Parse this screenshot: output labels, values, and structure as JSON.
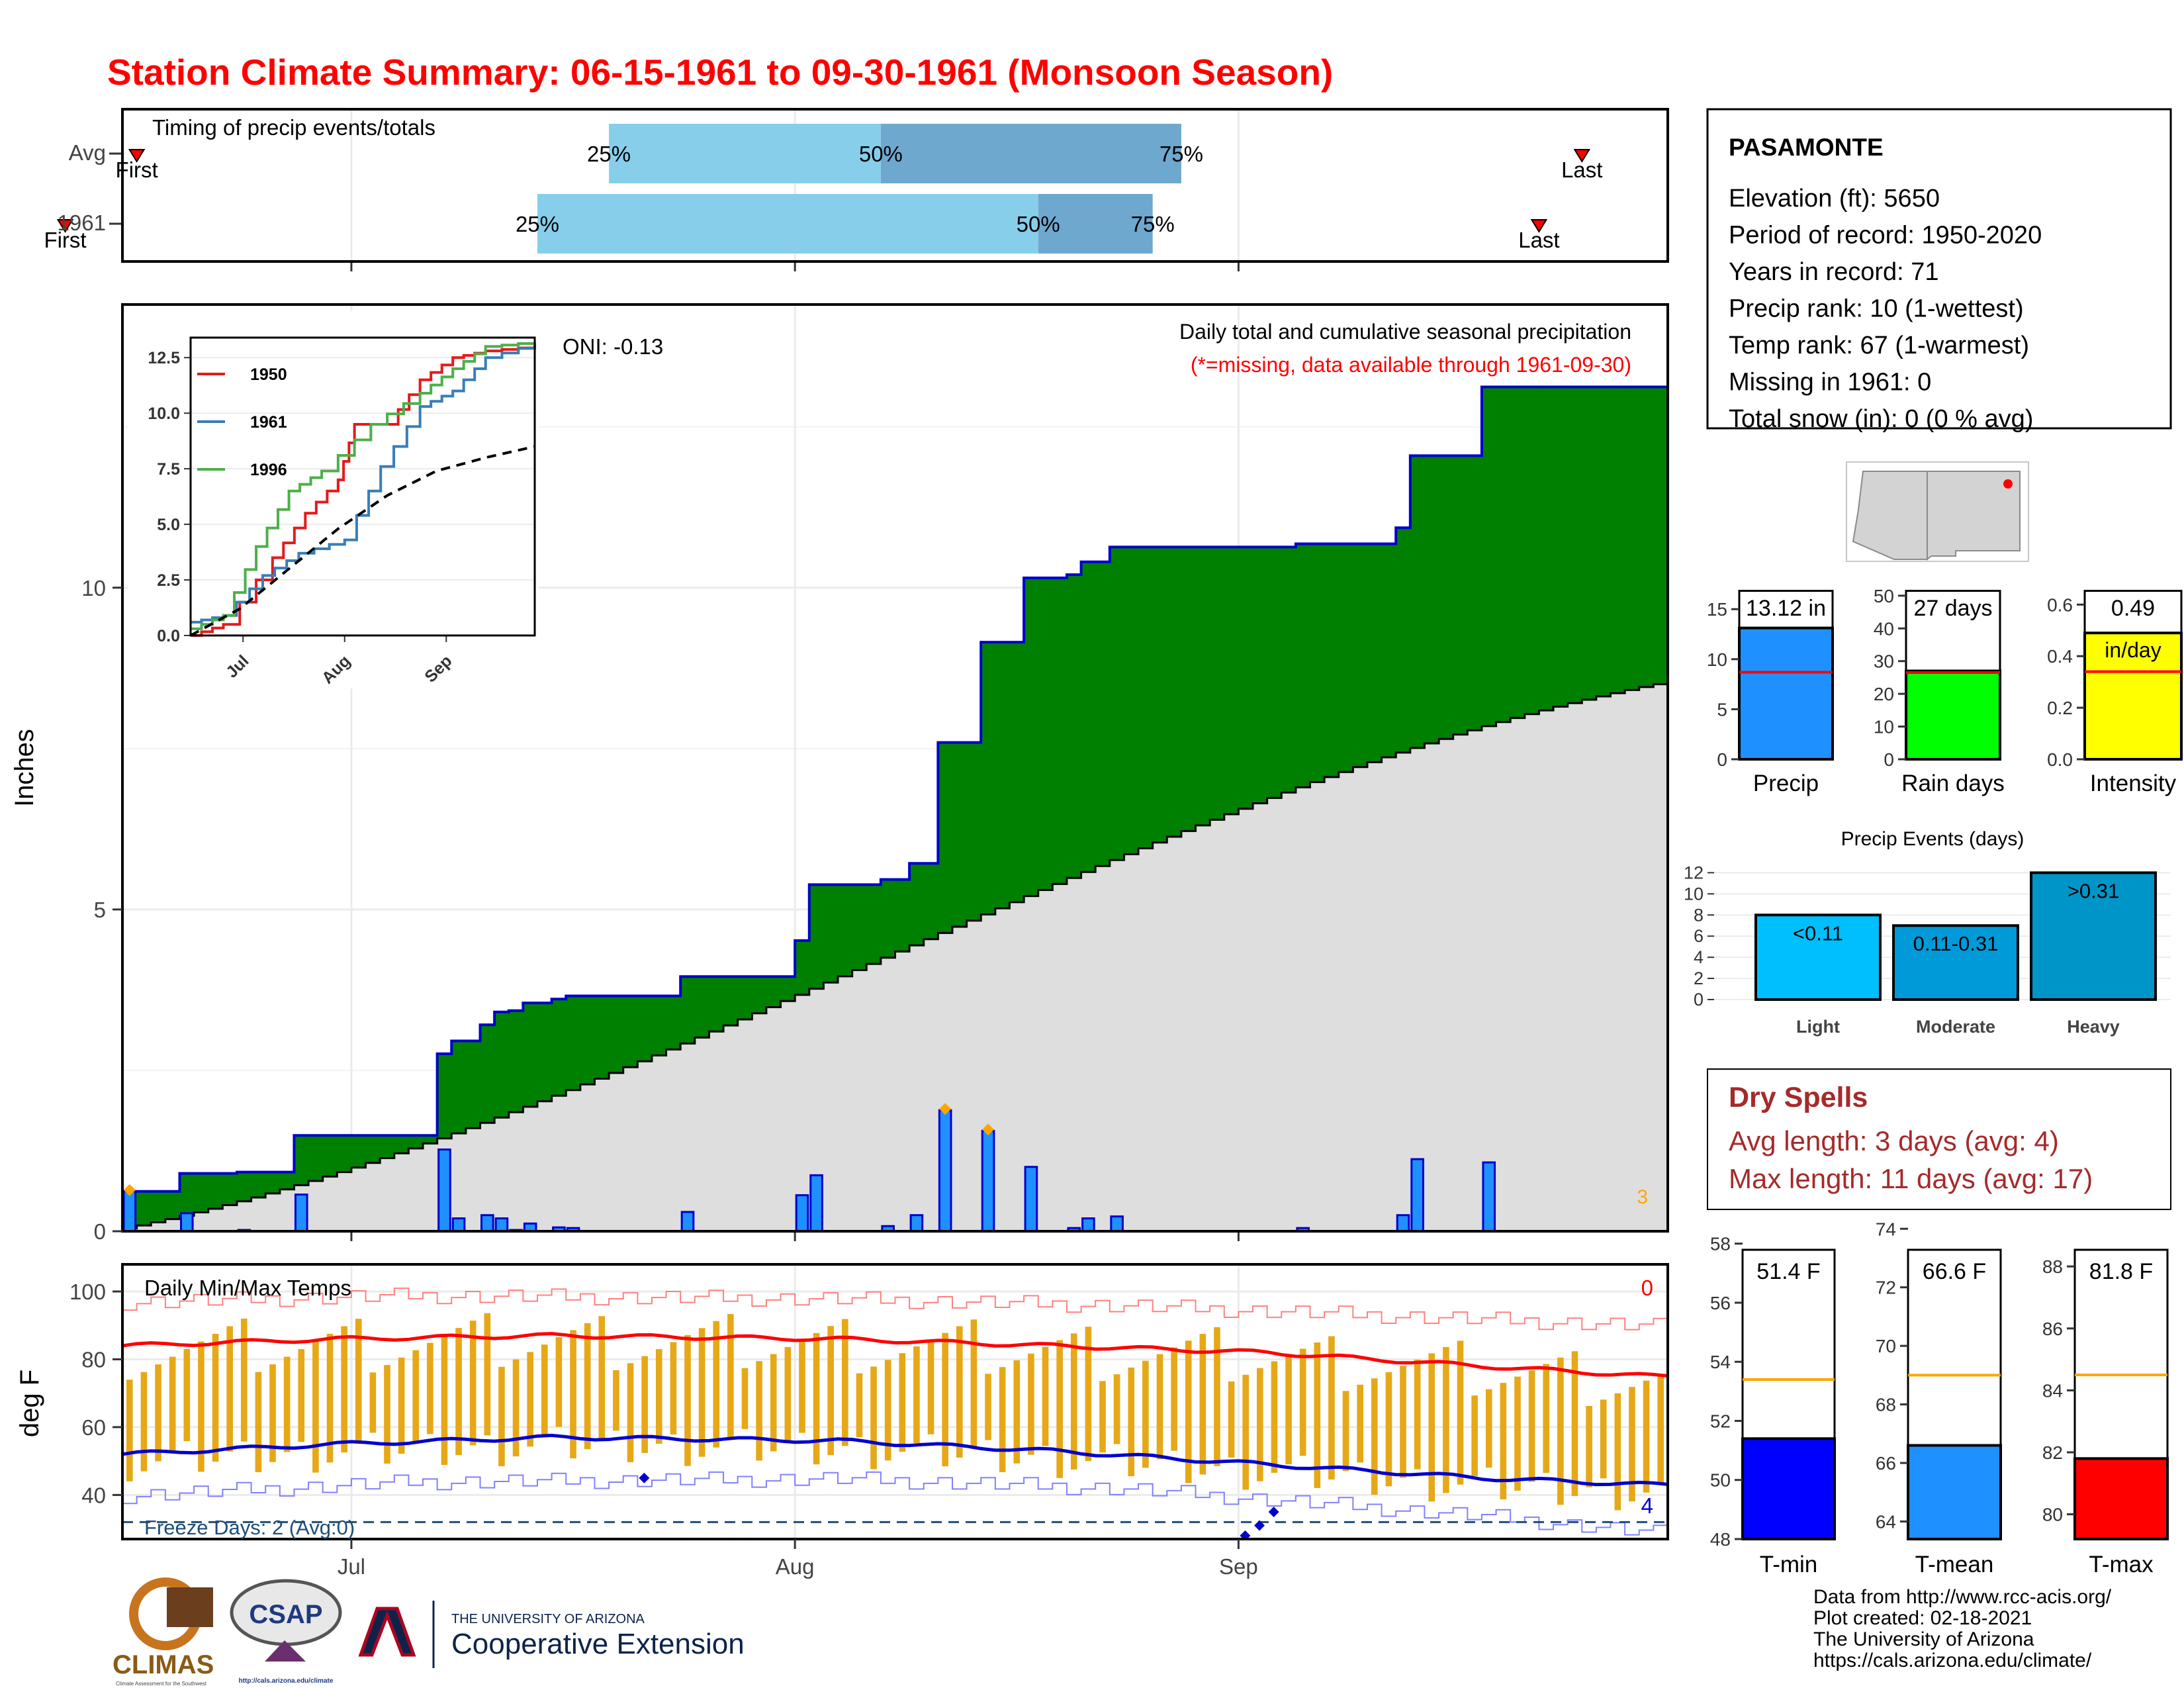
{
  "title": "Station Climate Summary: 06-15-1961 to 09-30-1961 (Monsoon Season)",
  "colors": {
    "title": "#ff0000",
    "cum_fill": "#008000",
    "cum_line": "#0000cd",
    "avg_fill": "#dedede",
    "bar": "#1e90ff",
    "q1": "#87ceeb",
    "q2": "#6fa8cf",
    "tmax": "#ff0000",
    "tmin": "#0000cd",
    "range_bar": "#e6a817",
    "dry_spell": "#a52a2a",
    "freeze": "#1f4e79",
    "marker": "#ffa500"
  },
  "timing": {
    "title": "Timing of precip events/totals",
    "rows": [
      {
        "label": "Avg",
        "first": "First",
        "last": "Last",
        "first_day": 1,
        "q25_day": 34,
        "q50_day": 53,
        "q75_day": 74,
        "last_day": 102,
        "p25": "25%",
        "p50": "50%",
        "p75": "75%"
      },
      {
        "label": "1961",
        "first": "First",
        "last": "Last",
        "first_day": -4,
        "q25_day": 29,
        "q50_day": 64,
        "q75_day": 72,
        "last_day": 99,
        "p25": "25%",
        "p50": "50%",
        "p75": "75%"
      }
    ]
  },
  "precip_panel": {
    "title": "Daily total and cumulative seasonal precipitation",
    "subtitle": "(*=missing, data available through 1961-09-30)",
    "oni": "ONI: -0.13",
    "ylabel": "Inches",
    "yticks": [
      "0",
      "5",
      "10"
    ],
    "corner_count": "3"
  },
  "temp_panel": {
    "title": "Daily Min/Max Temps",
    "ylabel": "deg F",
    "yticks": [
      "40",
      "60",
      "80",
      "100"
    ],
    "freeze_label": "Freeze Days: 2 (Avg:0)",
    "hot_count": "0",
    "cold_count": "4",
    "xticks": [
      "Jul",
      "Aug",
      "Sep"
    ]
  },
  "inset": {
    "yticks": [
      "0.0",
      "2.5",
      "5.0",
      "7.5",
      "10.0",
      "12.5"
    ],
    "xticks": [
      "Jul",
      "Aug",
      "Sep"
    ],
    "legend": [
      {
        "name": "1950",
        "color": "#e41a1c"
      },
      {
        "name": "1961",
        "color": "#377eb8"
      },
      {
        "name": "1996",
        "color": "#4daf4a"
      }
    ]
  },
  "station": {
    "name": "PASAMONTE",
    "lines": [
      "Elevation (ft): 5650",
      "Period of record: 1950-2020",
      "Years in record: 71",
      "Precip rank: 10 (1-wettest)",
      "Temp rank: 67 (1-warmest)",
      "Missing in 1961: 0",
      "Total snow (in): 0 (0 % avg)"
    ]
  },
  "summary_bars": [
    {
      "label": "Precip",
      "value_label": "13.12 in",
      "value": 13.12,
      "avg": 8.7,
      "ymax": 17,
      "ticks": [
        "0",
        "5",
        "10",
        "15"
      ],
      "tickvals": [
        0,
        5,
        10,
        15
      ],
      "color": "#1e90ff"
    },
    {
      "label": "Rain days",
      "value_label": "27 days",
      "value": 27,
      "avg": 26.5,
      "ymax": 52,
      "ticks": [
        "0",
        "10",
        "20",
        "30",
        "40",
        "50"
      ],
      "tickvals": [
        0,
        10,
        20,
        30,
        40,
        50
      ],
      "color": "#00ff00"
    },
    {
      "label": "Intensity",
      "value_label": "0.49",
      "unit_label": "in/day",
      "value": 0.49,
      "avg": 0.34,
      "ymax": 0.66,
      "ticks": [
        "0.0",
        "0.2",
        "0.4",
        "0.6"
      ],
      "tickvals": [
        0,
        0.2,
        0.4,
        0.6
      ],
      "color": "#ffff00"
    }
  ],
  "precip_events": {
    "title": "Precip Events (days)",
    "yticks": [
      "0",
      "2",
      "4",
      "6",
      "8",
      "10",
      "12"
    ],
    "categories": [
      "Light",
      "Moderate",
      "Heavy"
    ],
    "value_labels": [
      "<0.11",
      "0.11-0.31",
      ">0.31"
    ],
    "values": [
      8,
      7,
      12
    ],
    "colors": [
      "#00bfff",
      "#009ad9",
      "#0095c8"
    ]
  },
  "dry_spells": {
    "title": "Dry Spells",
    "avg_length": "Avg length: 3 days (avg: 4)",
    "max_length": "Max length: 11 days (avg: 17)"
  },
  "temp_summary": [
    {
      "label": "T-min",
      "value_label": "51.4 F",
      "value": 51.4,
      "avg": 53.4,
      "ymin": 48,
      "ymax": 58.8,
      "ticks": [
        "48",
        "50",
        "52",
        "54",
        "56",
        "58"
      ],
      "tickvals": [
        48,
        50,
        52,
        54,
        56,
        58
      ],
      "color": "#0000ff"
    },
    {
      "label": "T-mean",
      "value_label": "66.6 F",
      "value": 66.6,
      "avg": 69,
      "ymin": 63.4,
      "ymax": 74.3,
      "ticks": [
        "64",
        "66",
        "68",
        "70",
        "72",
        "74"
      ],
      "tickvals": [
        64,
        66,
        68,
        70,
        72,
        74
      ],
      "color": "#1e90ff"
    },
    {
      "label": "T-max",
      "value_label": "81.8 F",
      "value": 81.8,
      "avg": 84.5,
      "ymin": 79.2,
      "ymax": 89.5,
      "ticks": [
        "80",
        "82",
        "84",
        "86",
        "88"
      ],
      "tickvals": [
        80,
        82,
        84,
        86,
        88
      ],
      "color": "#ff0000"
    }
  ],
  "footer": {
    "lines": [
      "Data from http://www.rcc-acis.org/",
      "Plot created: 02-18-2021",
      "The University of Arizona",
      "https://cals.arizona.edu/climate/"
    ],
    "logos": {
      "climas": "CLIMAS",
      "climas_sub": "Climate Assessment for the Southwest",
      "csap": "CSAP",
      "csap_url": "http://cals.arizona.edu/climate",
      "ua_small": "THE UNIVERSITY OF ARIZONA",
      "ua_big": "Cooperative Extension"
    }
  },
  "chart_data": [
    {
      "type": "bar",
      "title": "Daily total and cumulative seasonal precipitation",
      "ylabel": "Inches",
      "ylim": [
        0,
        14.4
      ],
      "x_start": "1961-06-15",
      "x_end": "1961-09-30",
      "daily_precip": [
        {
          "date": "1961-06-15",
          "value": 0.62
        },
        {
          "date": "1961-06-19",
          "value": 0.28
        },
        {
          "date": "1961-06-23",
          "value": 0.02
        },
        {
          "date": "1961-06-27",
          "value": 0.57
        },
        {
          "date": "1961-07-07",
          "value": 1.27
        },
        {
          "date": "1961-07-08",
          "value": 0.2
        },
        {
          "date": "1961-07-10",
          "value": 0.25
        },
        {
          "date": "1961-07-11",
          "value": 0.2
        },
        {
          "date": "1961-07-12",
          "value": 0.02
        },
        {
          "date": "1961-07-13",
          "value": 0.12
        },
        {
          "date": "1961-07-15",
          "value": 0.06
        },
        {
          "date": "1961-07-16",
          "value": 0.05
        },
        {
          "date": "1961-07-24",
          "value": 0.3
        },
        {
          "date": "1961-08-01",
          "value": 0.56
        },
        {
          "date": "1961-08-02",
          "value": 0.87
        },
        {
          "date": "1961-08-07",
          "value": 0.08
        },
        {
          "date": "1961-08-09",
          "value": 0.25
        },
        {
          "date": "1961-08-11",
          "value": 1.88
        },
        {
          "date": "1961-08-14",
          "value": 1.56
        },
        {
          "date": "1961-08-17",
          "value": 1.0
        },
        {
          "date": "1961-08-20",
          "value": 0.05
        },
        {
          "date": "1961-08-21",
          "value": 0.2
        },
        {
          "date": "1961-08-23",
          "value": 0.23
        },
        {
          "date": "1961-09-05",
          "value": 0.05
        },
        {
          "date": "1961-09-12",
          "value": 0.25
        },
        {
          "date": "1961-09-13",
          "value": 1.12
        },
        {
          "date": "1961-09-18",
          "value": 1.07
        }
      ],
      "cumulative_1961_end": 13.12,
      "cumulative_avg_end": 8.5
    },
    {
      "type": "line",
      "title": "Daily Min/Max Temps",
      "ylabel": "deg F",
      "ylim": [
        27,
        108
      ],
      "series": [
        {
          "name": "tmax_avg",
          "points": [
            [
              0,
              84
            ],
            [
              15,
              86
            ],
            [
              30,
              87
            ],
            [
              50,
              86
            ],
            [
              65,
              84
            ],
            [
              80,
              82
            ],
            [
              95,
              78
            ],
            [
              107,
              75
            ]
          ]
        },
        {
          "name": "tmin_avg",
          "points": [
            [
              0,
              52
            ],
            [
              15,
              55
            ],
            [
              30,
              57
            ],
            [
              50,
              56
            ],
            [
              65,
              53
            ],
            [
              80,
              49
            ],
            [
              95,
              45
            ],
            [
              107,
              43
            ]
          ]
        },
        {
          "name": "tmax_record",
          "points": [
            [
              0,
              97
            ],
            [
              20,
              99
            ],
            [
              50,
              98
            ],
            [
              70,
              96
            ],
            [
              95,
              92
            ],
            [
              107,
              90
            ]
          ]
        },
        {
          "name": "tmin_record",
          "points": [
            [
              0,
              40
            ],
            [
              20,
              44
            ],
            [
              50,
              45
            ],
            [
              70,
              42
            ],
            [
              95,
              34
            ],
            [
              107,
              29
            ]
          ]
        }
      ],
      "freeze_line": 32
    },
    {
      "type": "line",
      "title": "",
      "series": [
        {
          "name": "1950",
          "points": [
            [
              0,
              0
            ],
            [
              10,
              0.5
            ],
            [
              25,
              3.5
            ],
            [
              35,
              5.5
            ],
            [
              45,
              7.0
            ],
            [
              50,
              9.5
            ],
            [
              60,
              9.5
            ],
            [
              70,
              11.5
            ],
            [
              80,
              12.5
            ],
            [
              90,
              12.8
            ],
            [
              105,
              13.0
            ]
          ]
        },
        {
          "name": "1961",
          "points": [
            [
              0,
              0.6
            ],
            [
              10,
              0.9
            ],
            [
              22,
              2.7
            ],
            [
              33,
              3.7
            ],
            [
              47,
              4.3
            ],
            [
              58,
              7.6
            ],
            [
              70,
              10.3
            ],
            [
              80,
              11.0
            ],
            [
              90,
              12.5
            ],
            [
              105,
              13.12
            ]
          ]
        },
        {
          "name": "1996",
          "points": [
            [
              0,
              0.3
            ],
            [
              10,
              0.9
            ],
            [
              20,
              4.0
            ],
            [
              30,
              6.5
            ],
            [
              40,
              7.4
            ],
            [
              55,
              9.5
            ],
            [
              70,
              10.9
            ],
            [
              80,
              12.0
            ],
            [
              90,
              13.0
            ],
            [
              105,
              13.2
            ]
          ]
        },
        {
          "name": "avg",
          "points": [
            [
              0,
              0
            ],
            [
              15,
              1.2
            ],
            [
              30,
              3.0
            ],
            [
              45,
              4.8
            ],
            [
              60,
              6.3
            ],
            [
              75,
              7.4
            ],
            [
              90,
              8.0
            ],
            [
              105,
              8.5
            ]
          ]
        }
      ]
    },
    {
      "type": "bar",
      "title": "Precip Events (days)",
      "categories": [
        "Light",
        "Moderate",
        "Heavy"
      ],
      "values": [
        8,
        7,
        12
      ],
      "ylim": [
        0,
        12.4
      ]
    }
  ]
}
